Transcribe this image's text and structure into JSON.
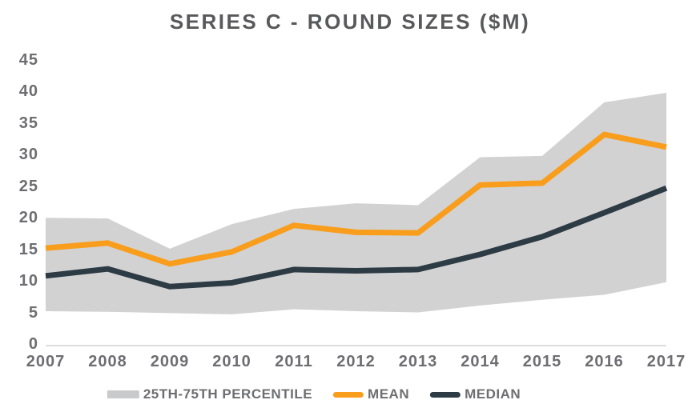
{
  "title": "SERIES C - ROUND SIZES ($M)",
  "colors": {
    "band": "#d2d2d2",
    "band_swatch": "#c9cacc",
    "mean": "#f99d1c",
    "median": "#2d3b45",
    "title_text": "#58595b",
    "axis_text": "#6d6e71",
    "axis_line": "#dcdcdc"
  },
  "legend": {
    "items": [
      {
        "label": "25TH-75TH PERCENTILE",
        "swatch": "band"
      },
      {
        "label": "MEAN",
        "swatch": "mean"
      },
      {
        "label": "MEDIAN",
        "swatch": "median"
      }
    ]
  },
  "chart_data": {
    "type": "area",
    "title": "SERIES C - ROUND SIZES ($M)",
    "x": [
      2007,
      2008,
      2009,
      2010,
      2011,
      2012,
      2013,
      2014,
      2015,
      2016,
      2017
    ],
    "series": [
      {
        "name": "25TH-75TH PERCENTILE",
        "type": "band",
        "lower": [
          5.2,
          5.1,
          4.9,
          4.7,
          5.5,
          5.2,
          5.0,
          6.1,
          7.0,
          7.8,
          9.8
        ],
        "upper": [
          20.0,
          19.9,
          15.1,
          19.0,
          21.4,
          22.3,
          22.0,
          29.6,
          29.8,
          38.3,
          39.8
        ]
      },
      {
        "name": "MEAN",
        "type": "line",
        "values": [
          15.2,
          16.0,
          12.7,
          14.6,
          18.8,
          17.7,
          17.6,
          25.2,
          25.5,
          33.2,
          31.2
        ]
      },
      {
        "name": "MEDIAN",
        "type": "line",
        "values": [
          10.8,
          11.9,
          9.1,
          9.7,
          11.8,
          11.6,
          11.8,
          14.2,
          17.0,
          20.8,
          24.7
        ]
      }
    ],
    "xlabel": "",
    "ylabel": "",
    "ylim": [
      0,
      45
    ],
    "y_ticks": [
      0,
      5,
      10,
      15,
      20,
      25,
      30,
      35,
      40,
      45
    ],
    "grid": false,
    "legend_position": "bottom"
  }
}
